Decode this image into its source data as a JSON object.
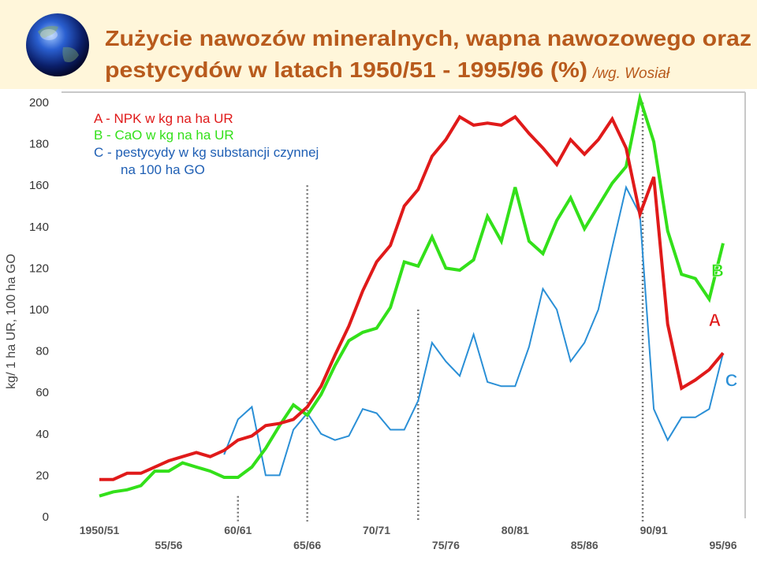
{
  "header": {
    "title_line1": "Zużycie nawozów mineralnych, wapna nawozowego oraz",
    "title_line2": "pestycydów w latach 1950/51 - 1995/96 (%)",
    "source": "/wg. Wosiał"
  },
  "colors": {
    "title": "#b85a1c",
    "series_a": "#e01a1a",
    "series_b": "#33e01a",
    "series_c": "#2a8fd6",
    "legend_c_text": "#1f5fb4",
    "marker_dots": "#777777",
    "header_band": "#fff6da"
  },
  "icon": "globe-icon",
  "chart_data": {
    "type": "line",
    "title": "Zużycie nawozów mineralnych, wapna nawozowego oraz pestycydów w latach 1950/51 - 1995/96 (%)",
    "ylabel": "kg/ 1 ha UR, 100 ha GO",
    "ylim": [
      0,
      200
    ],
    "yticks": [
      0,
      20,
      40,
      60,
      80,
      100,
      120,
      140,
      160,
      180,
      200
    ],
    "xlim": [
      1950,
      1995
    ],
    "x_ticks_upper": [
      {
        "x": 1950,
        "label": "1950/51"
      },
      {
        "x": 1960,
        "label": "60/61"
      },
      {
        "x": 1970,
        "label": "70/71"
      },
      {
        "x": 1980,
        "label": "80/81"
      },
      {
        "x": 1990,
        "label": "90/91"
      }
    ],
    "x_ticks_lower": [
      {
        "x": 1955,
        "label": "55/56"
      },
      {
        "x": 1965,
        "label": "65/66"
      },
      {
        "x": 1975,
        "label": "75/76"
      },
      {
        "x": 1985,
        "label": "85/86"
      },
      {
        "x": 1995,
        "label": "95/96"
      }
    ],
    "legend": [
      "A - NPK w kg na ha UR",
      "B - CaO w kg na ha UR",
      "C - pestycydy w kg substancji czynnej",
      "na 100 ha GO"
    ],
    "reference_lines_x": [
      1960,
      1965,
      1973,
      1989.2
    ],
    "series": [
      {
        "name": "A",
        "x": [
          1950,
          1951,
          1952,
          1953,
          1954,
          1955,
          1956,
          1957,
          1958,
          1959,
          1960,
          1961,
          1962,
          1963,
          1964,
          1965,
          1966,
          1967,
          1968,
          1969,
          1970,
          1971,
          1972,
          1973,
          1974,
          1975,
          1976,
          1977,
          1978,
          1979,
          1980,
          1981,
          1982,
          1983,
          1984,
          1985,
          1986,
          1987,
          1988,
          1989,
          1990,
          1991,
          1992,
          1993,
          1994,
          1995
        ],
        "values": [
          18,
          18,
          21,
          21,
          24,
          27,
          29,
          31,
          29,
          32,
          37,
          39,
          44,
          45,
          47,
          53,
          63,
          78,
          92,
          109,
          123,
          131,
          150,
          158,
          174,
          182,
          193,
          189,
          190,
          189,
          193,
          185,
          178,
          170,
          182,
          175,
          182,
          192,
          178,
          146,
          164,
          93,
          62,
          66,
          71,
          79
        ]
      },
      {
        "name": "B",
        "x": [
          1950,
          1951,
          1952,
          1953,
          1954,
          1955,
          1956,
          1957,
          1958,
          1959,
          1960,
          1961,
          1962,
          1963,
          1964,
          1965,
          1966,
          1967,
          1968,
          1969,
          1970,
          1971,
          1972,
          1973,
          1974,
          1975,
          1976,
          1977,
          1978,
          1979,
          1980,
          1981,
          1982,
          1983,
          1984,
          1985,
          1986,
          1987,
          1988,
          1989,
          1990,
          1991,
          1992,
          1993,
          1994,
          1995
        ],
        "values": [
          10,
          12,
          13,
          15,
          22,
          22,
          26,
          24,
          22,
          19,
          19,
          24,
          33,
          44,
          54,
          49,
          59,
          73,
          85,
          89,
          91,
          101,
          123,
          121,
          135,
          120,
          119,
          124,
          145,
          133,
          159,
          133,
          127,
          143,
          154,
          139,
          150,
          161,
          169,
          202,
          181,
          138,
          117,
          115,
          105,
          132
        ]
      },
      {
        "name": "C",
        "x": [
          1959,
          1960,
          1961,
          1962,
          1963,
          1964,
          1965,
          1966,
          1967,
          1968,
          1969,
          1970,
          1971,
          1972,
          1973,
          1974,
          1975,
          1976,
          1977,
          1978,
          1979,
          1980,
          1981,
          1982,
          1983,
          1984,
          1985,
          1986,
          1987,
          1988,
          1989,
          1990,
          1991,
          1992,
          1993,
          1994,
          1995
        ],
        "values": [
          30,
          47,
          53,
          20,
          20,
          42,
          50,
          40,
          37,
          39,
          52,
          50,
          42,
          42,
          56,
          84,
          75,
          68,
          88,
          65,
          63,
          63,
          82,
          110,
          100,
          75,
          84,
          100,
          130,
          159,
          146,
          52,
          37,
          48,
          48,
          52,
          79
        ]
      }
    ],
    "series_labels": [
      {
        "name": "B",
        "x": 1994.6,
        "y": 116
      },
      {
        "name": "A",
        "x": 1994.4,
        "y": 92
      },
      {
        "name": "C",
        "x": 1995.6,
        "y": 63
      }
    ]
  }
}
